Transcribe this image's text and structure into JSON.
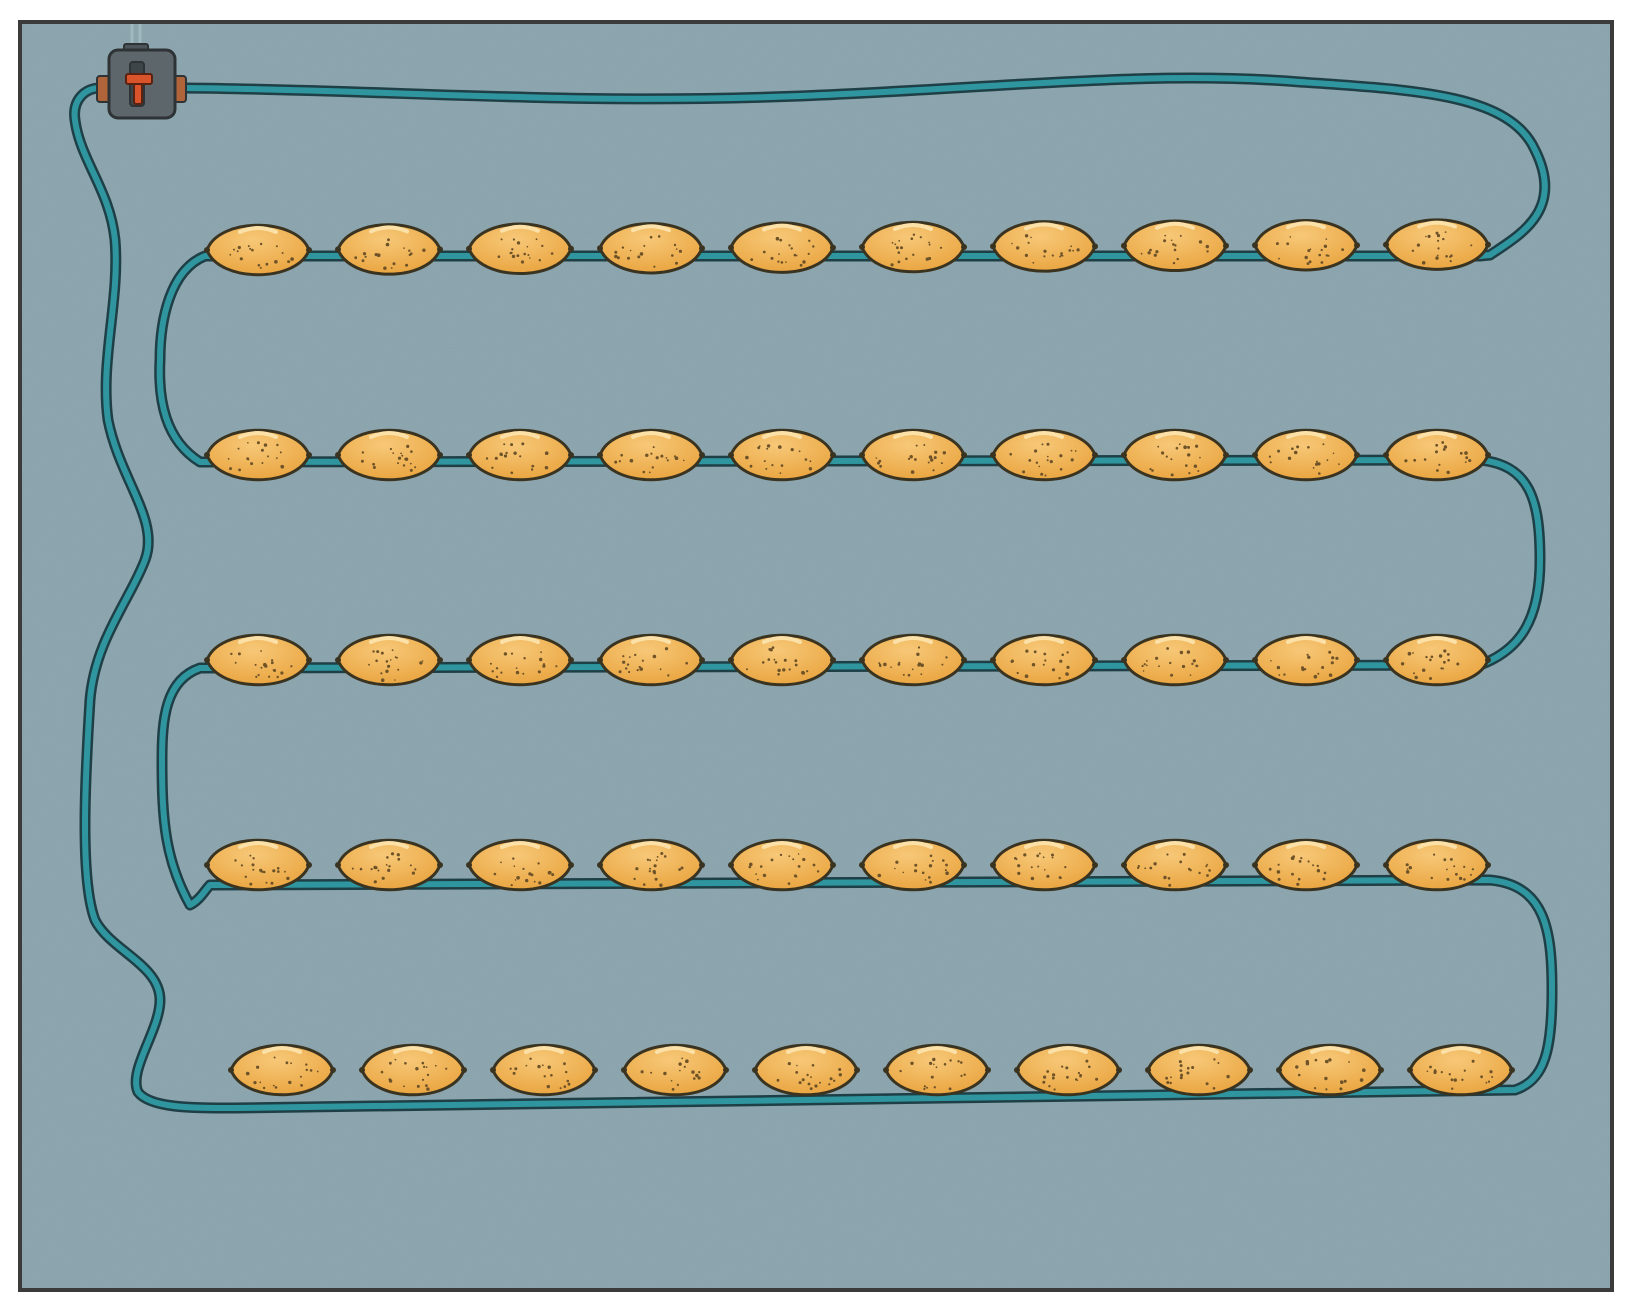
{
  "scene": {
    "description_type": "illustration",
    "colors": {
      "background": "#ffffff",
      "panel": "#8aa4ad",
      "panel_border": "#3b3b3b",
      "hose": "#2f96a0",
      "hose_outline": "#1f3f47",
      "emitter_fill": "#f1b04e",
      "emitter_light": "#f7c878",
      "emitter_outline": "#3a3320",
      "emitter_speckle": "#6e5228",
      "valve_body": "#5d666b",
      "valve_outline": "#2e3336",
      "valve_handle": "#d9542a",
      "valve_port": "#b0643a"
    },
    "icons": {
      "valve": "water-valve-icon",
      "emitter": "drip-emitter-icon"
    },
    "emitters_per_row": 10,
    "emitter_rows": 5,
    "emitter_count": 50
  }
}
